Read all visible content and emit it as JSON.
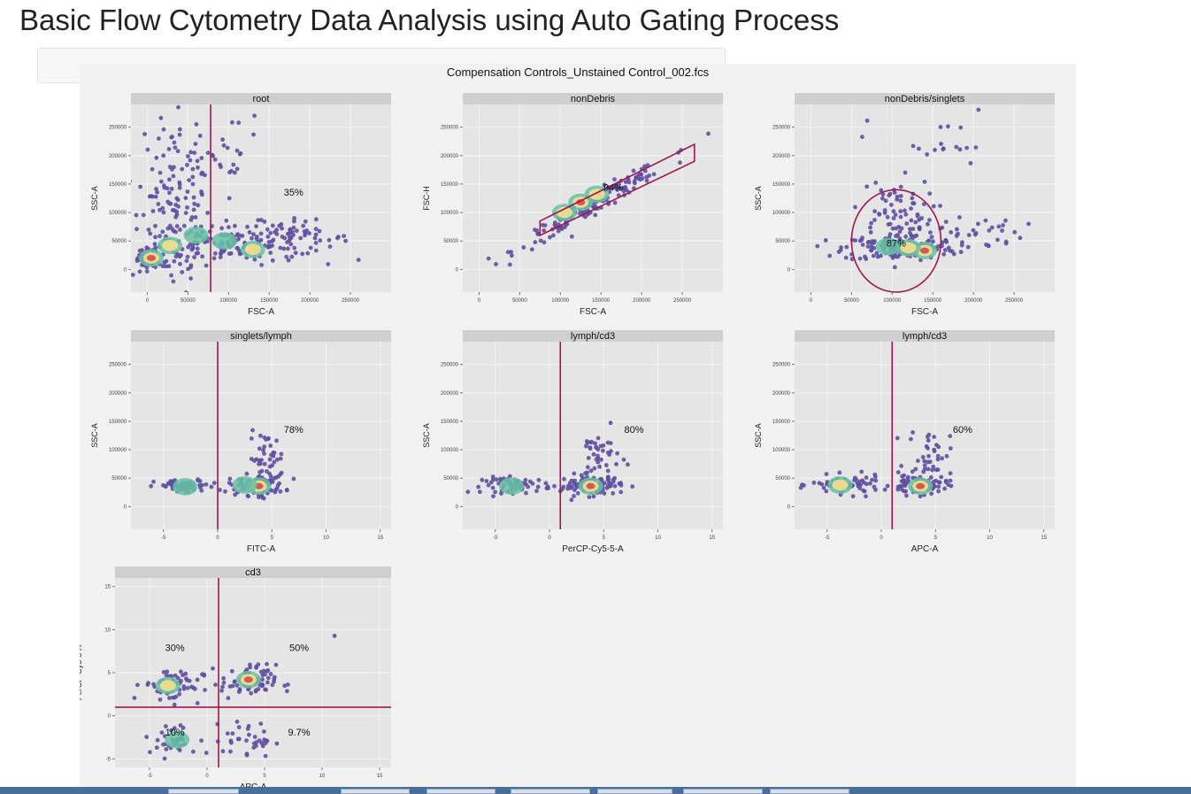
{
  "page": {
    "title": "Basic Flow Cytometry Data Analysis using Auto Gating Process"
  },
  "figure": {
    "title": "Compensation Controls_Unstained Control_002.fcs"
  },
  "colors": {
    "gate": "#a0174f",
    "panel_bg": "#e5e5e5",
    "strip_bg": "#cfcfcf",
    "grid": "#f4f4f4",
    "density_low": "#5e4fa2",
    "density_mid": "#66c2a5",
    "density_mid2": "#fee08b",
    "density_high": "#d53e4f"
  },
  "chart_data": [
    {
      "type": "scatter",
      "title": "root",
      "xlabel": "FSC-A",
      "ylabel": "SSC-A",
      "xlim": [
        -20000,
        300000
      ],
      "ylim": [
        -40000,
        290000
      ],
      "xticks": [
        0,
        50000,
        100000,
        150000,
        200000,
        250000
      ],
      "xtick_labels": [
        "0",
        "50000",
        "100000",
        "150000",
        "200000",
        "250000"
      ],
      "yticks": [
        0,
        50000,
        100000,
        150000,
        200000,
        250000
      ],
      "ytick_labels": [
        "0",
        "50000",
        "100000",
        "150000",
        "200000",
        "250000"
      ],
      "gate": {
        "type": "vline",
        "x": 78000
      },
      "annotations": [
        {
          "text": "35%",
          "x": 180000,
          "y": 130000
        }
      ],
      "clusters": [
        {
          "x": 2000,
          "y": 20000,
          "sx": 7000,
          "sy": 9000,
          "n": 40
        },
        {
          "x": 30000,
          "y": 80000,
          "sx": 25000,
          "sy": 60000,
          "n": 120
        },
        {
          "x": 100000,
          "y": 45000,
          "sx": 45000,
          "sy": 18000,
          "n": 110
        },
        {
          "x": 170000,
          "y": 55000,
          "sx": 40000,
          "sy": 15000,
          "n": 70
        },
        {
          "x": 60000,
          "y": 200000,
          "sx": 45000,
          "sy": 45000,
          "n": 60
        }
      ],
      "hotspots": [
        {
          "x": 5000,
          "y": 20000,
          "level": 3
        },
        {
          "x": 28000,
          "y": 42000,
          "level": 2
        },
        {
          "x": 130000,
          "y": 35000,
          "level": 2
        },
        {
          "x": 95000,
          "y": 50000,
          "level": 1
        },
        {
          "x": 60000,
          "y": 60000,
          "level": 1
        }
      ]
    },
    {
      "type": "scatter",
      "title": "nonDebris",
      "xlabel": "FSC-A",
      "ylabel": "FSC-H",
      "xlim": [
        -20000,
        300000
      ],
      "ylim": [
        -40000,
        290000
      ],
      "xticks": [
        0,
        50000,
        100000,
        150000,
        200000,
        250000
      ],
      "xtick_labels": [
        "0",
        "50000",
        "100000",
        "150000",
        "200000",
        "250000"
      ],
      "yticks": [
        0,
        50000,
        100000,
        150000,
        200000,
        250000
      ],
      "ytick_labels": [
        "0",
        "50000",
        "100000",
        "150000",
        "200000",
        "250000"
      ],
      "gate": {
        "type": "polygon",
        "points": [
          [
            75000,
            60000
          ],
          [
            75000,
            85000
          ],
          [
            265000,
            220000
          ],
          [
            265000,
            190000
          ]
        ]
      },
      "annotations": [
        {
          "text": "94%",
          "x": 165000,
          "y": 138000
        }
      ],
      "clusters": [
        {
          "x": 140000,
          "y": 115000,
          "sx": 45000,
          "sy": 0,
          "n": 170,
          "slope": 0.82,
          "noise": 9000
        }
      ],
      "hotspots": [
        {
          "x": 125000,
          "y": 118000,
          "level": 3
        },
        {
          "x": 105000,
          "y": 100000,
          "level": 2
        },
        {
          "x": 145000,
          "y": 132000,
          "level": 2
        }
      ]
    },
    {
      "type": "scatter",
      "title": "nonDebris/singlets",
      "xlabel": "FSC-A",
      "ylabel": "SSC-A",
      "xlim": [
        -20000,
        300000
      ],
      "ylim": [
        -40000,
        290000
      ],
      "xticks": [
        0,
        50000,
        100000,
        150000,
        200000,
        250000
      ],
      "xtick_labels": [
        "0",
        "50000",
        "100000",
        "150000",
        "200000",
        "250000"
      ],
      "yticks": [
        0,
        50000,
        100000,
        150000,
        200000,
        250000
      ],
      "ytick_labels": [
        "0",
        "50000",
        "100000",
        "150000",
        "200000",
        "250000"
      ],
      "gate": {
        "type": "ellipse",
        "cx": 105000,
        "cy": 50000,
        "rx": 55000,
        "ry": 90000
      },
      "annotations": [
        {
          "text": "87%",
          "x": 105000,
          "y": 40000
        }
      ],
      "clusters": [
        {
          "x": 110000,
          "y": 38000,
          "sx": 35000,
          "sy": 12000,
          "n": 150
        },
        {
          "x": 100000,
          "y": 100000,
          "sx": 25000,
          "sy": 30000,
          "n": 70
        },
        {
          "x": 190000,
          "y": 65000,
          "sx": 35000,
          "sy": 15000,
          "n": 40
        },
        {
          "x": 150000,
          "y": 220000,
          "sx": 40000,
          "sy": 30000,
          "n": 18
        }
      ],
      "hotspots": [
        {
          "x": 140000,
          "y": 33000,
          "level": 3
        },
        {
          "x": 120000,
          "y": 38000,
          "level": 2
        },
        {
          "x": 95000,
          "y": 40000,
          "level": 1
        }
      ]
    },
    {
      "type": "scatter",
      "title": "singlets/lymph",
      "xlabel": "FITC-A",
      "ylabel": "SSC-A",
      "xlim": [
        -8,
        16
      ],
      "ylim": [
        -40000,
        290000
      ],
      "xticks": [
        -5,
        0,
        5,
        10,
        15
      ],
      "xtick_labels": [
        "-5",
        "0",
        "5",
        "10",
        "15"
      ],
      "yticks": [
        0,
        50000,
        100000,
        150000,
        200000,
        250000
      ],
      "ytick_labels": [
        "0",
        "50000",
        "100000",
        "150000",
        "200000",
        "250000"
      ],
      "gate": {
        "type": "vline",
        "x": 0
      },
      "annotations": [
        {
          "text": "78%",
          "x": 7,
          "y": 130000
        }
      ],
      "clusters": [
        {
          "x": -3,
          "y": 35000,
          "sx": 1.4,
          "sy": 6000,
          "n": 60
        },
        {
          "x": 3.6,
          "y": 38000,
          "sx": 1.3,
          "sy": 9000,
          "n": 90
        },
        {
          "x": 4.5,
          "y": 85000,
          "sx": 0.8,
          "sy": 22000,
          "n": 40
        }
      ],
      "hotspots": [
        {
          "x": 3.8,
          "y": 36000,
          "level": 3
        },
        {
          "x": -3,
          "y": 35000,
          "level": 1
        },
        {
          "x": 2.5,
          "y": 38000,
          "level": 1
        }
      ]
    },
    {
      "type": "scatter",
      "title": "lymph/cd3",
      "xlabel": "PerCP-Cy5-5-A",
      "ylabel": "SSC-A",
      "xlim": [
        -8,
        16
      ],
      "ylim": [
        -40000,
        290000
      ],
      "xticks": [
        -5,
        0,
        5,
        10,
        15
      ],
      "xtick_labels": [
        "-5",
        "0",
        "5",
        "10",
        "15"
      ],
      "yticks": [
        0,
        50000,
        100000,
        150000,
        200000,
        250000
      ],
      "ytick_labels": [
        "0",
        "50000",
        "100000",
        "150000",
        "200000",
        "250000"
      ],
      "gate": {
        "type": "vline",
        "x": 1
      },
      "annotations": [
        {
          "text": "80%",
          "x": 7.8,
          "y": 130000
        }
      ],
      "clusters": [
        {
          "x": -3,
          "y": 38000,
          "sx": 1.6,
          "sy": 7000,
          "n": 70
        },
        {
          "x": 3.8,
          "y": 38000,
          "sx": 1.4,
          "sy": 9000,
          "n": 95
        },
        {
          "x": 4.5,
          "y": 90000,
          "sx": 1.0,
          "sy": 22000,
          "n": 40
        }
      ],
      "hotspots": [
        {
          "x": 3.8,
          "y": 36000,
          "level": 3
        },
        {
          "x": -3.5,
          "y": 36000,
          "level": 1
        }
      ]
    },
    {
      "type": "scatter",
      "title": "lymph/cd3",
      "xlabel": "APC-A",
      "ylabel": "SSC-A",
      "xlim": [
        -8,
        16
      ],
      "ylim": [
        -40000,
        290000
      ],
      "xticks": [
        -5,
        0,
        5,
        10,
        15
      ],
      "xtick_labels": [
        "-5",
        "0",
        "5",
        "10",
        "15"
      ],
      "yticks": [
        0,
        50000,
        100000,
        150000,
        200000,
        250000
      ],
      "ytick_labels": [
        "0",
        "50000",
        "100000",
        "150000",
        "200000",
        "250000"
      ],
      "gate": {
        "type": "vline",
        "x": 1
      },
      "annotations": [
        {
          "text": "60%",
          "x": 7.5,
          "y": 130000
        }
      ],
      "clusters": [
        {
          "x": -3.2,
          "y": 38000,
          "sx": 1.6,
          "sy": 8000,
          "n": 80
        },
        {
          "x": 3.5,
          "y": 38000,
          "sx": 1.3,
          "sy": 9000,
          "n": 85
        },
        {
          "x": 4.5,
          "y": 95000,
          "sx": 1.0,
          "sy": 20000,
          "n": 35
        }
      ],
      "hotspots": [
        {
          "x": 3.6,
          "y": 36000,
          "level": 3
        },
        {
          "x": -3.8,
          "y": 38000,
          "level": 2
        }
      ]
    },
    {
      "type": "scatter",
      "title": "cd3",
      "xlabel": "APC-A",
      "ylabel": "PerCP-Cy5-5-A",
      "xlim": [
        -8,
        16
      ],
      "ylim": [
        -6,
        16
      ],
      "xticks": [
        -5,
        0,
        5,
        10,
        15
      ],
      "xtick_labels": [
        "-5",
        "0",
        "5",
        "10",
        "15"
      ],
      "yticks": [
        -5,
        0,
        5,
        10,
        15
      ],
      "ytick_labels": [
        "-5",
        "0",
        "5",
        "10",
        "15"
      ],
      "gate": {
        "type": "quad",
        "x": 1,
        "y": 1
      },
      "annotations": [
        {
          "text": "30%",
          "x": -2.8,
          "y": 7.5
        },
        {
          "text": "50%",
          "x": 8,
          "y": 7.5
        },
        {
          "text": "10%",
          "x": -2.8,
          "y": -2.3
        },
        {
          "text": "9.7%",
          "x": 8,
          "y": -2.3
        }
      ],
      "clusters": [
        {
          "x": -3,
          "y": 3.6,
          "sx": 1.3,
          "sy": 1.0,
          "n": 60
        },
        {
          "x": 3.6,
          "y": 3.9,
          "sx": 1.2,
          "sy": 1.0,
          "n": 75
        },
        {
          "x": -3,
          "y": -2.8,
          "sx": 1.2,
          "sy": 1.0,
          "n": 35
        },
        {
          "x": 3.6,
          "y": -2.8,
          "sx": 1.1,
          "sy": 1.0,
          "n": 35
        },
        {
          "x": 11,
          "y": 9.3,
          "sx": 0.05,
          "sy": 0.05,
          "n": 1
        }
      ],
      "hotspots": [
        {
          "x": 3.6,
          "y": 4.2,
          "level": 3
        },
        {
          "x": -3.4,
          "y": 3.5,
          "level": 2
        },
        {
          "x": -2.6,
          "y": -2.8,
          "level": 1
        }
      ]
    }
  ]
}
